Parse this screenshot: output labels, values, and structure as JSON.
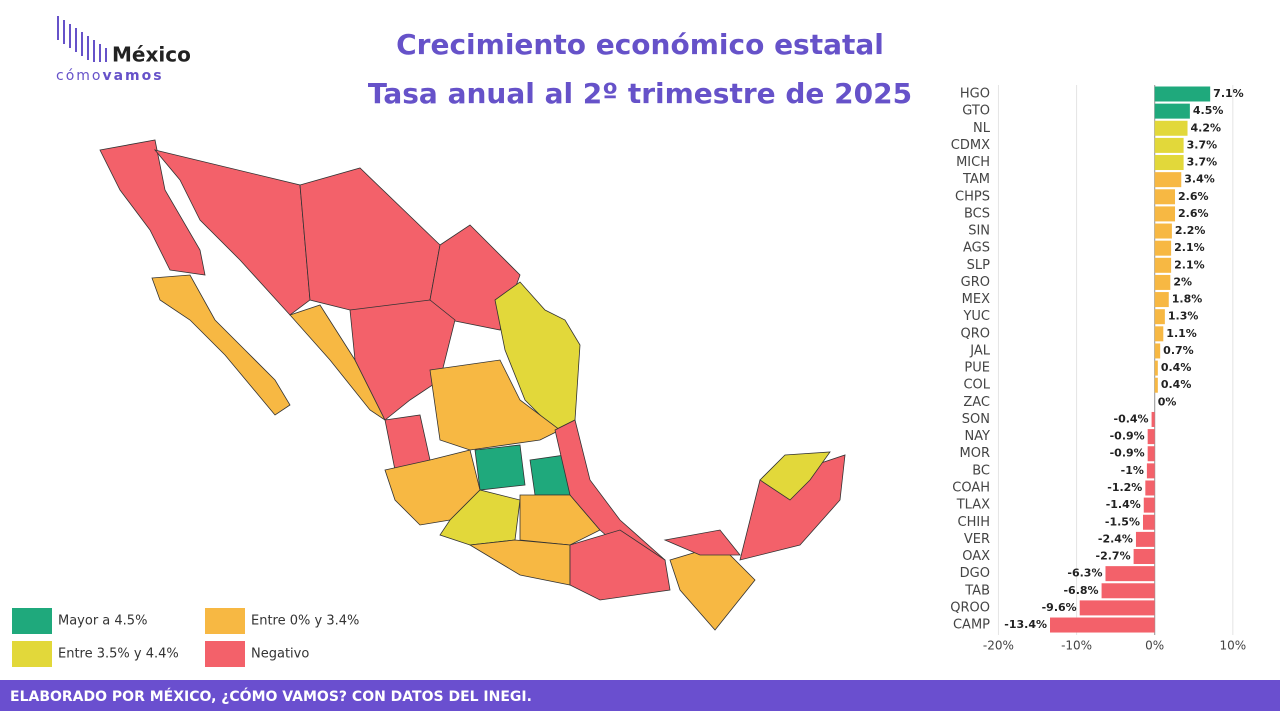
{
  "logo": {
    "name": "México",
    "tag_light": "cómo",
    "tag_bold": "vamos"
  },
  "chart_data": {
    "type": "hbar",
    "title": "Crecimiento económico estatal",
    "subtitle": "Tasa anual al 2º trimestre de 2025",
    "categories": [
      "HGO",
      "GTO",
      "NL",
      "CDMX",
      "MICH",
      "TAM",
      "CHPS",
      "BCS",
      "SIN",
      "AGS",
      "SLP",
      "GRO",
      "MEX",
      "YUC",
      "QRO",
      "JAL",
      "PUE",
      "COL",
      "ZAC",
      "SON",
      "NAY",
      "MOR",
      "BC",
      "COAH",
      "TLAX",
      "CHIH",
      "VER",
      "OAX",
      "DGO",
      "TAB",
      "QROO",
      "CAMP"
    ],
    "values": [
      7.1,
      4.5,
      4.2,
      3.7,
      3.7,
      3.4,
      2.6,
      2.6,
      2.2,
      2.1,
      2.1,
      2,
      1.8,
      1.3,
      1.1,
      0.7,
      0.4,
      0.4,
      0,
      -0.4,
      -0.9,
      -0.9,
      -1,
      -1.2,
      -1.4,
      -1.5,
      -2.4,
      -2.7,
      -6.3,
      -6.8,
      -9.6,
      -13.4
    ],
    "value_labels": [
      "7.1%",
      "4.5%",
      "4.2%",
      "3.7%",
      "3.7%",
      "3.4%",
      "2.6%",
      "2.6%",
      "2.2%",
      "2.1%",
      "2.1%",
      "2%",
      "1.8%",
      "1.3%",
      "1.1%",
      "0.7%",
      "0.4%",
      "0.4%",
      "0%",
      "-0.4%",
      "-0.9%",
      "-0.9%",
      "-1%",
      "-1.2%",
      "-1.4%",
      "-1.5%",
      "-2.4%",
      "-2.7%",
      "-6.3%",
      "-6.8%",
      "-9.6%",
      "-13.4%"
    ],
    "colors": [
      "#1fa97c",
      "#1fa97c",
      "#e2d83a",
      "#e2d83a",
      "#e2d83a",
      "#f7b843",
      "#f7b843",
      "#f7b843",
      "#f7b843",
      "#f7b843",
      "#f7b843",
      "#f7b843",
      "#f7b843",
      "#f7b843",
      "#f7b843",
      "#f7b843",
      "#f7b843",
      "#f7b843",
      "#f7b843",
      "#f3616a",
      "#f3616a",
      "#f3616a",
      "#f3616a",
      "#f3616a",
      "#f3616a",
      "#f3616a",
      "#f3616a",
      "#f3616a",
      "#f3616a",
      "#f3616a",
      "#f3616a",
      "#f3616a"
    ],
    "xlim": [
      -23,
      14.5
    ],
    "xticks": [
      {
        "value": -20,
        "label": "-20%"
      },
      {
        "value": -10,
        "label": "-10%"
      },
      {
        "value": 0,
        "label": "0%"
      },
      {
        "value": 10,
        "label": "10%"
      }
    ],
    "grid": true
  },
  "legend": [
    {
      "label": "Mayor a 4.5%",
      "color": "#1fa97c"
    },
    {
      "label": "Entre 0% y 3.4%",
      "color": "#f7b843"
    },
    {
      "label": "Entre 3.5% y 4.4%",
      "color": "#e2d83a"
    },
    {
      "label": "Negativo",
      "color": "#f3616a"
    }
  ],
  "footer": "ELABORADO POR MÉXICO, ¿CÓMO VAMOS? CON DATOS DEL INEGI."
}
